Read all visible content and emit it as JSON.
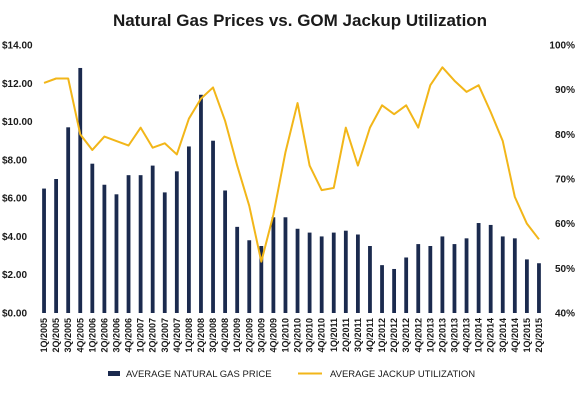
{
  "chart_data": {
    "type": "bar",
    "title": "Natural Gas Prices vs. GOM Jackup Utilization",
    "categories": [
      "1Q/2005",
      "2Q/2005",
      "3Q/2005",
      "4Q/2005",
      "1Q/2006",
      "2Q/2006",
      "3Q/2006",
      "4Q/2006",
      "1Q/2007",
      "2Q/2007",
      "3Q/2007",
      "4Q/2007",
      "1Q/2008",
      "2Q/2008",
      "3Q/2008",
      "4Q/2008",
      "1Q/2009",
      "2Q/2009",
      "3Q/2009",
      "4Q/2009",
      "1Q/2010",
      "2Q/2010",
      "3Q/2010",
      "4Q/2010",
      "1Q/2011",
      "2Q/2011",
      "3Q/2011",
      "4Q/2011",
      "1Q/2012",
      "2Q/2012",
      "3Q/2012",
      "4Q/2012",
      "1Q/2013",
      "2Q/2013",
      "3Q/2013",
      "4Q/2013",
      "1Q/2014",
      "2Q/2014",
      "3Q/2014",
      "4Q/2014",
      "1Q/2015",
      "2Q/2015"
    ],
    "series": [
      {
        "name": "AVERAGE NATURAL GAS PRICE",
        "type": "bar",
        "axis": "left",
        "color": "#1b2a4e",
        "values": [
          6.5,
          7.0,
          9.7,
          12.8,
          7.8,
          6.7,
          6.2,
          7.2,
          7.2,
          7.7,
          6.3,
          7.4,
          8.7,
          11.4,
          9.0,
          6.4,
          4.5,
          3.8,
          3.5,
          5.0,
          5.0,
          4.4,
          4.2,
          4.0,
          4.2,
          4.3,
          4.1,
          3.5,
          2.5,
          2.3,
          2.9,
          3.6,
          3.5,
          4.0,
          3.6,
          3.9,
          4.7,
          4.6,
          4.0,
          3.9,
          2.8,
          2.6
        ]
      },
      {
        "name": "AVERAGE JACKUP UTILIZATION",
        "type": "line",
        "axis": "right",
        "color": "#f2b619",
        "values": [
          91.5,
          92.5,
          92.5,
          80,
          76.5,
          79.5,
          78.5,
          77.5,
          81.5,
          77,
          78,
          75.5,
          83.5,
          88,
          90.5,
          83,
          73,
          64,
          51.5,
          62,
          76,
          87,
          73,
          67.5,
          68,
          81.5,
          73,
          81.5,
          86.5,
          84.5,
          86.5,
          81.5,
          91,
          95,
          92,
          89.5,
          91,
          85,
          78.5,
          66,
          60,
          56.5
        ]
      }
    ],
    "y_left": {
      "min": 0,
      "max": 14,
      "ticks": [
        "$0.00",
        "$2.00",
        "$4.00",
        "$6.00",
        "$8.00",
        "$10.00",
        "$12.00",
        "$14.00"
      ]
    },
    "y_right": {
      "min": 40,
      "max": 100,
      "ticks": [
        "40%",
        "50%",
        "60%",
        "70%",
        "80%",
        "90%",
        "100%"
      ]
    },
    "xlabel": "",
    "ylabel": "",
    "grid": false,
    "legend_position": "bottom"
  }
}
